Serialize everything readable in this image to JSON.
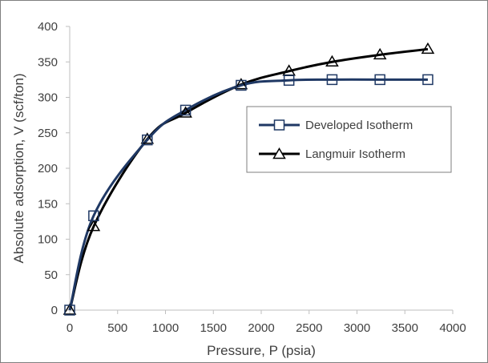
{
  "chart_data": {
    "type": "line",
    "title": "",
    "xlabel": "Pressure, P (psia)",
    "ylabel": "Absolute adsorption, V (scf/ton)",
    "xlim": [
      0,
      4000
    ],
    "ylim": [
      0,
      400
    ],
    "xticks": [
      0,
      500,
      1000,
      1500,
      2000,
      2500,
      3000,
      3500,
      4000
    ],
    "yticks": [
      0,
      50,
      100,
      150,
      200,
      250,
      300,
      350,
      400
    ],
    "grid": false,
    "legend_position": "right-middle",
    "series": [
      {
        "name": "Developed Isotherm",
        "color": "#1f3864",
        "marker": "square",
        "x": [
          0,
          250,
          810,
          1210,
          1790,
          2290,
          2740,
          3240,
          3740
        ],
        "y": [
          0,
          133,
          240,
          282,
          317,
          324,
          325,
          325,
          325
        ]
      },
      {
        "name": "Langmuir Isotherm",
        "color": "#000000",
        "marker": "triangle",
        "x": [
          0,
          250,
          810,
          1210,
          1790,
          2290,
          2740,
          3240,
          3740
        ],
        "y": [
          0,
          118,
          241,
          278,
          318,
          337,
          350,
          360,
          368
        ]
      }
    ]
  }
}
